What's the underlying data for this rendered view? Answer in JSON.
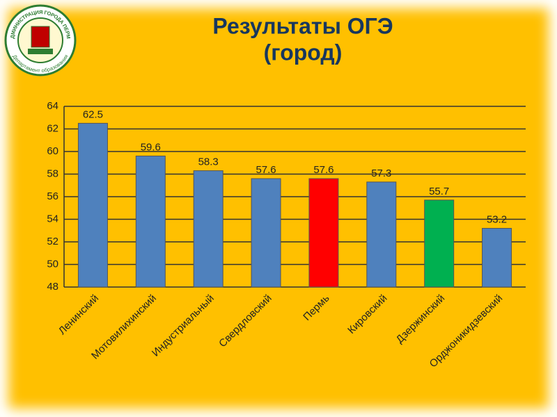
{
  "chart_data": {
    "type": "bar",
    "title": "Результаты ОГЭ",
    "subtitle": "(город)",
    "logo": {
      "top_text": "АДМИНИСТРАЦИЯ ГОРОДА ПЕРМИ",
      "bottom_text": "Департамент образования"
    },
    "categories": [
      "Ленинский",
      "Мотовилихинский",
      "Индустриальный",
      "Свердловский",
      "Пермь",
      "Кировский",
      "Дзержинский",
      "Орджоникидзевский"
    ],
    "values": [
      62.5,
      59.6,
      58.3,
      57.6,
      57.6,
      57.3,
      55.7,
      53.2
    ],
    "colors": [
      "#4f81bd",
      "#4f81bd",
      "#4f81bd",
      "#4f81bd",
      "#ff0000",
      "#4f81bd",
      "#00b050",
      "#4f81bd"
    ],
    "ylim": [
      48,
      64
    ],
    "yticks": [
      48,
      50,
      52,
      54,
      56,
      58,
      60,
      62,
      64
    ],
    "grid": true
  }
}
